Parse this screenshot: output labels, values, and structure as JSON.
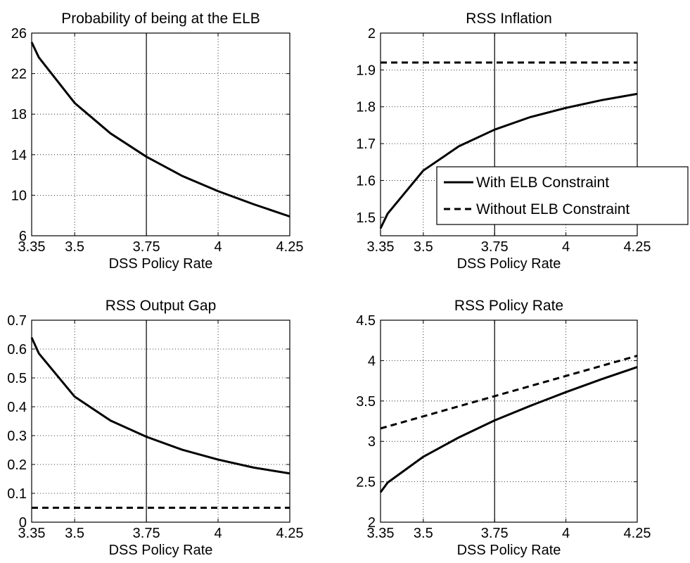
{
  "chart_data": [
    {
      "type": "line",
      "title": "Probability of being at the ELB",
      "xlabel": "DSS Policy Rate",
      "ylabel": "",
      "xlim": [
        3.35,
        4.25
      ],
      "ylim": [
        6,
        26
      ],
      "xticks": [
        3.35,
        3.5,
        3.75,
        4,
        4.25
      ],
      "xtick_labels": [
        "3.35",
        "3.5",
        "3.75",
        "4",
        "4.25"
      ],
      "yticks": [
        6,
        10,
        14,
        18,
        22,
        26
      ],
      "ytick_labels": [
        "6",
        "10",
        "14",
        "18",
        "22",
        "26"
      ],
      "grid": "dotted",
      "vline": 3.75,
      "series": [
        {
          "style": "solid",
          "x": [
            3.35,
            3.375,
            3.5,
            3.625,
            3.75,
            3.875,
            4.0,
            4.125,
            4.25
          ],
          "y": [
            25.1,
            23.6,
            19.1,
            16.1,
            13.8,
            11.9,
            10.4,
            9.1,
            7.9
          ]
        }
      ]
    },
    {
      "type": "line",
      "title": "RSS Inflation",
      "xlabel": "DSS Policy Rate",
      "ylabel": "",
      "xlim": [
        3.35,
        4.25
      ],
      "ylim": [
        1.45,
        2.0
      ],
      "xticks": [
        3.35,
        3.5,
        3.75,
        4,
        4.25
      ],
      "xtick_labels": [
        "3.35",
        "3.5",
        "3.75",
        "4",
        "4.25"
      ],
      "yticks": [
        1.5,
        1.6,
        1.7,
        1.8,
        1.9,
        2.0
      ],
      "ytick_labels": [
        "1.5",
        "1.6",
        "1.7",
        "1.8",
        "1.9",
        "2"
      ],
      "grid": "dotted",
      "vline": 3.75,
      "legend": {
        "position": "lower-right",
        "entries": [
          {
            "label": "With ELB Constraint",
            "style": "solid"
          },
          {
            "label": "Without ELB Constraint",
            "style": "dashed"
          }
        ]
      },
      "series": [
        {
          "name": "With ELB Constraint",
          "style": "solid",
          "x": [
            3.35,
            3.375,
            3.5,
            3.625,
            3.75,
            3.875,
            4.0,
            4.125,
            4.25
          ],
          "y": [
            1.47,
            1.51,
            1.627,
            1.693,
            1.738,
            1.772,
            1.797,
            1.818,
            1.835
          ]
        },
        {
          "name": "Without ELB Constraint",
          "style": "dashed",
          "x": [
            3.35,
            4.25
          ],
          "y": [
            1.92,
            1.92
          ]
        }
      ]
    },
    {
      "type": "line",
      "title": "RSS Output Gap",
      "xlabel": "DSS Policy Rate",
      "ylabel": "",
      "xlim": [
        3.35,
        4.25
      ],
      "ylim": [
        0,
        0.7
      ],
      "xticks": [
        3.35,
        3.5,
        3.75,
        4,
        4.25
      ],
      "xtick_labels": [
        "3.35",
        "3.5",
        "3.75",
        "4",
        "4.25"
      ],
      "yticks": [
        0,
        0.1,
        0.2,
        0.3,
        0.4,
        0.5,
        0.6,
        0.7
      ],
      "ytick_labels": [
        "0",
        "0.1",
        "0.2",
        "0.3",
        "0.4",
        "0.5",
        "0.6",
        "0.7"
      ],
      "grid": "dotted",
      "vline": 3.75,
      "series": [
        {
          "style": "solid",
          "x": [
            3.35,
            3.375,
            3.5,
            3.625,
            3.75,
            3.875,
            4.0,
            4.125,
            4.25
          ],
          "y": [
            0.64,
            0.585,
            0.435,
            0.352,
            0.296,
            0.251,
            0.217,
            0.189,
            0.169
          ]
        },
        {
          "style": "dashed",
          "x": [
            3.35,
            4.25
          ],
          "y": [
            0.05,
            0.05
          ]
        }
      ]
    },
    {
      "type": "line",
      "title": "RSS Policy Rate",
      "xlabel": "DSS Policy Rate",
      "ylabel": "",
      "xlim": [
        3.35,
        4.25
      ],
      "ylim": [
        2,
        4.5
      ],
      "xticks": [
        3.35,
        3.5,
        3.75,
        4,
        4.25
      ],
      "xtick_labels": [
        "3.35",
        "3.5",
        "3.75",
        "4",
        "4.25"
      ],
      "yticks": [
        2,
        2.5,
        3,
        3.5,
        4,
        4.5
      ],
      "ytick_labels": [
        "2",
        "2.5",
        "3",
        "3.5",
        "4",
        "4.5"
      ],
      "grid": "dotted",
      "vline": 3.75,
      "series": [
        {
          "style": "solid",
          "x": [
            3.35,
            3.375,
            3.5,
            3.625,
            3.75,
            3.875,
            4.0,
            4.125,
            4.25
          ],
          "y": [
            2.37,
            2.49,
            2.81,
            3.05,
            3.26,
            3.44,
            3.61,
            3.77,
            3.92
          ]
        },
        {
          "style": "dashed",
          "x": [
            3.35,
            4.25
          ],
          "y": [
            3.16,
            4.06
          ]
        }
      ]
    }
  ]
}
